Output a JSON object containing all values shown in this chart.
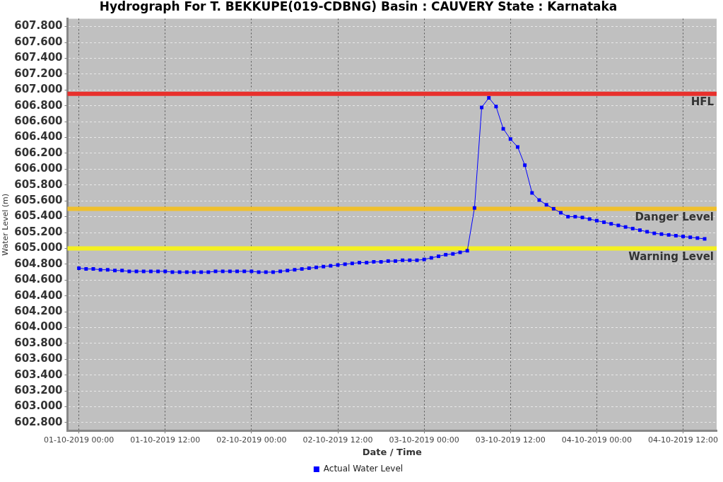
{
  "chart_data": {
    "type": "line",
    "title": "Hydrograph For T. BEKKUPE(019-CDBNG) Basin : CAUVERY State : Karnataka",
    "xlabel": "Date / Time",
    "ylabel": "Water Level (m)",
    "x": [
      "2019-10-01T00:00",
      "2019-10-01T01:00",
      "2019-10-01T02:00",
      "2019-10-01T03:00",
      "2019-10-01T04:00",
      "2019-10-01T05:00",
      "2019-10-01T06:00",
      "2019-10-01T07:00",
      "2019-10-01T08:00",
      "2019-10-01T09:00",
      "2019-10-01T10:00",
      "2019-10-01T11:00",
      "2019-10-01T12:00",
      "2019-10-01T13:00",
      "2019-10-01T14:00",
      "2019-10-01T15:00",
      "2019-10-01T16:00",
      "2019-10-01T17:00",
      "2019-10-01T18:00",
      "2019-10-01T19:00",
      "2019-10-01T20:00",
      "2019-10-01T21:00",
      "2019-10-01T22:00",
      "2019-10-01T23:00",
      "2019-10-02T00:00",
      "2019-10-02T01:00",
      "2019-10-02T02:00",
      "2019-10-02T03:00",
      "2019-10-02T04:00",
      "2019-10-02T05:00",
      "2019-10-02T06:00",
      "2019-10-02T07:00",
      "2019-10-02T08:00",
      "2019-10-02T09:00",
      "2019-10-02T10:00",
      "2019-10-02T11:00",
      "2019-10-02T12:00",
      "2019-10-02T13:00",
      "2019-10-02T14:00",
      "2019-10-02T15:00",
      "2019-10-02T16:00",
      "2019-10-02T17:00",
      "2019-10-02T18:00",
      "2019-10-02T19:00",
      "2019-10-02T20:00",
      "2019-10-02T21:00",
      "2019-10-02T22:00",
      "2019-10-02T23:00",
      "2019-10-03T00:00",
      "2019-10-03T01:00",
      "2019-10-03T02:00",
      "2019-10-03T03:00",
      "2019-10-03T04:00",
      "2019-10-03T05:00",
      "2019-10-03T06:00",
      "2019-10-03T07:00",
      "2019-10-03T08:00",
      "2019-10-03T09:00",
      "2019-10-03T10:00",
      "2019-10-03T11:00",
      "2019-10-03T12:00",
      "2019-10-03T13:00",
      "2019-10-03T14:00",
      "2019-10-03T15:00",
      "2019-10-03T16:00",
      "2019-10-03T17:00",
      "2019-10-03T18:00",
      "2019-10-03T19:00",
      "2019-10-03T20:00",
      "2019-10-03T21:00",
      "2019-10-03T22:00",
      "2019-10-03T23:00",
      "2019-10-04T00:00",
      "2019-10-04T01:00",
      "2019-10-04T02:00",
      "2019-10-04T03:00",
      "2019-10-04T04:00",
      "2019-10-04T05:00",
      "2019-10-04T06:00",
      "2019-10-04T07:00",
      "2019-10-04T08:00",
      "2019-10-04T09:00",
      "2019-10-04T10:00",
      "2019-10-04T11:00",
      "2019-10-04T12:00",
      "2019-10-04T13:00",
      "2019-10-04T14:00",
      "2019-10-04T15:00"
    ],
    "series": [
      {
        "name": "Actual Water Level",
        "color": "#0000ff",
        "values": [
          604.75,
          604.74,
          604.74,
          604.73,
          604.73,
          604.72,
          604.72,
          604.71,
          604.71,
          604.71,
          604.71,
          604.71,
          604.71,
          604.7,
          604.7,
          604.7,
          604.7,
          604.7,
          604.7,
          604.71,
          604.71,
          604.71,
          604.71,
          604.71,
          604.71,
          604.7,
          604.7,
          604.7,
          604.71,
          604.72,
          604.73,
          604.74,
          604.75,
          604.76,
          604.77,
          604.78,
          604.79,
          604.8,
          604.81,
          604.82,
          604.82,
          604.83,
          604.83,
          604.84,
          604.84,
          604.85,
          604.85,
          604.85,
          604.86,
          604.88,
          604.9,
          604.92,
          604.93,
          604.95,
          604.97,
          605.51,
          606.78,
          606.9,
          606.79,
          606.51,
          606.38,
          606.28,
          606.05,
          605.7,
          605.61,
          605.55,
          605.5,
          605.45,
          605.4,
          605.4,
          605.39,
          605.37,
          605.35,
          605.33,
          605.31,
          605.29,
          605.27,
          605.25,
          605.23,
          605.21,
          605.19,
          605.18,
          605.17,
          605.16,
          605.15,
          605.14,
          605.13,
          605.12
        ]
      }
    ],
    "xlim": [
      "2019-09-30T22:25",
      "2019-10-04T16:40"
    ],
    "xticks": [
      {
        "value": "2019-10-01T00:00",
        "label": "01-10-2019 00:00"
      },
      {
        "value": "2019-10-01T12:00",
        "label": "01-10-2019 12:00"
      },
      {
        "value": "2019-10-02T00:00",
        "label": "02-10-2019 00:00"
      },
      {
        "value": "2019-10-02T12:00",
        "label": "02-10-2019 12:00"
      },
      {
        "value": "2019-10-03T00:00",
        "label": "03-10-2019 00:00"
      },
      {
        "value": "2019-10-03T12:00",
        "label": "03-10-2019 12:00"
      },
      {
        "value": "2019-10-04T00:00",
        "label": "04-10-2019 00:00"
      },
      {
        "value": "2019-10-04T12:00",
        "label": "04-10-2019 12:00"
      }
    ],
    "ylim": [
      602.7,
      607.9
    ],
    "yticks": [
      {
        "value": 602.8,
        "label": "602.800"
      },
      {
        "value": 603.0,
        "label": "603.000"
      },
      {
        "value": 603.2,
        "label": "603.200"
      },
      {
        "value": 603.4,
        "label": "603.400"
      },
      {
        "value": 603.6,
        "label": "603.600"
      },
      {
        "value": 603.8,
        "label": "603.800"
      },
      {
        "value": 604.0,
        "label": "604.000"
      },
      {
        "value": 604.2,
        "label": "604.200"
      },
      {
        "value": 604.4,
        "label": "604.400"
      },
      {
        "value": 604.6,
        "label": "604.600"
      },
      {
        "value": 604.8,
        "label": "604.800"
      },
      {
        "value": 605.0,
        "label": "605.000"
      },
      {
        "value": 605.2,
        "label": "605.200"
      },
      {
        "value": 605.4,
        "label": "605.400"
      },
      {
        "value": 605.6,
        "label": "605.600"
      },
      {
        "value": 605.8,
        "label": "605.800"
      },
      {
        "value": 606.0,
        "label": "606.000"
      },
      {
        "value": 606.2,
        "label": "606.200"
      },
      {
        "value": 606.4,
        "label": "606.400"
      },
      {
        "value": 606.6,
        "label": "606.600"
      },
      {
        "value": 606.8,
        "label": "606.800"
      },
      {
        "value": 607.0,
        "label": "607.000"
      },
      {
        "value": 607.2,
        "label": "607.200"
      },
      {
        "value": 607.4,
        "label": "607.400"
      },
      {
        "value": 607.6,
        "label": "607.600"
      },
      {
        "value": 607.8,
        "label": "607.800"
      }
    ],
    "ref_lines": [
      {
        "axis": "y",
        "value": 606.95,
        "label": "HFL",
        "color": "#e8302c"
      },
      {
        "axis": "y",
        "value": 605.5,
        "label": "Danger Level",
        "color": "#f0c02c"
      },
      {
        "axis": "y",
        "value": 605.0,
        "label": "Warning Level",
        "color": "#f4f020"
      }
    ],
    "grid": true,
    "legend": "bottom",
    "marker": "square",
    "line_style": "solid"
  }
}
